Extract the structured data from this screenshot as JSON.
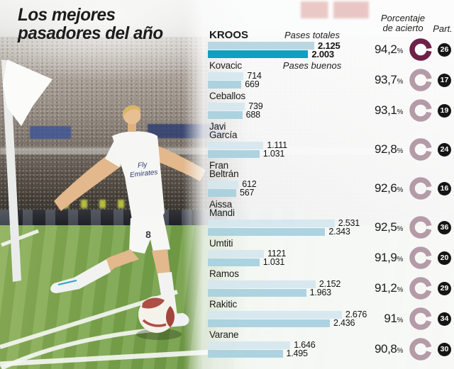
{
  "title": {
    "line1": "Los mejores",
    "line2": "pasadores del año"
  },
  "header": {
    "accuracy_line1": "Porcentaje",
    "accuracy_line2": "de acierto",
    "participation": "Part.",
    "percent_sign": "%"
  },
  "photo": {
    "jersey_line1": "Fly",
    "jersey_line2": "Emirates",
    "shirt_number": "8"
  },
  "colors": {
    "bar_total": "rgba(213,230,238,0.93)",
    "bar_good": "rgba(167,208,223,0.93)",
    "bar_total_highlight": "rgba(181,213,225,0.95)",
    "bar_good_highlight": "#0da0c0",
    "ring": "#b49ba7",
    "ring_highlight": "#6e2048",
    "badge_bg": "#151515",
    "badge_text": "#ffffff"
  },
  "chart_data": {
    "type": "bar",
    "title": "Los mejores pasadores del año",
    "orientation": "horizontal",
    "series_labels": {
      "total": "Pases totales",
      "good": "Pases buenos"
    },
    "columns": {
      "accuracy": "Porcentaje de acierto",
      "participation": "Part."
    },
    "players": [
      {
        "name_lines": [
          "KROOS"
        ],
        "total": 2125,
        "total_label": "2.125",
        "good": 2003,
        "good_label": "2.003",
        "accuracy": 94.2,
        "accuracy_label": "94,2",
        "matches": "26",
        "highlight": true
      },
      {
        "name_lines": [
          "Kovacic"
        ],
        "total": 714,
        "total_label": "714",
        "good": 669,
        "good_label": "669",
        "accuracy": 93.7,
        "accuracy_label": "93,7",
        "matches": "17",
        "highlight": false
      },
      {
        "name_lines": [
          "Ceballos"
        ],
        "total": 739,
        "total_label": "739",
        "good": 688,
        "good_label": "688",
        "accuracy": 93.1,
        "accuracy_label": "93,1",
        "matches": "19",
        "highlight": false
      },
      {
        "name_lines": [
          "Javi",
          "García"
        ],
        "total": 1111,
        "total_label": "1.111",
        "good": 1031,
        "good_label": "1.031",
        "accuracy": 92.8,
        "accuracy_label": "92,8",
        "matches": "24",
        "highlight": false
      },
      {
        "name_lines": [
          "Fran",
          "Beltrán"
        ],
        "total": 612,
        "total_label": "612",
        "good": 567,
        "good_label": "567",
        "accuracy": 92.6,
        "accuracy_label": "92,6",
        "matches": "16",
        "highlight": false
      },
      {
        "name_lines": [
          "Aissa",
          "Mandi"
        ],
        "total": 2531,
        "total_label": "2.531",
        "good": 2343,
        "good_label": "2.343",
        "accuracy": 92.5,
        "accuracy_label": "92,5",
        "matches": "36",
        "highlight": false
      },
      {
        "name_lines": [
          "Umtiti"
        ],
        "total": 1121,
        "total_label": "1121",
        "good": 1031,
        "good_label": "1.031",
        "accuracy": 91.9,
        "accuracy_label": "91,9",
        "matches": "20",
        "highlight": false
      },
      {
        "name_lines": [
          "Ramos"
        ],
        "total": 2152,
        "total_label": "2.152",
        "good": 1963,
        "good_label": "1.963",
        "accuracy": 91.2,
        "accuracy_label": "91,2",
        "matches": "29",
        "highlight": false
      },
      {
        "name_lines": [
          "Rakitic"
        ],
        "total": 2676,
        "total_label": "2.676",
        "good": 2436,
        "good_label": "2.436",
        "accuracy": 91.0,
        "accuracy_label": "91",
        "matches": "34",
        "highlight": false
      },
      {
        "name_lines": [
          "Varane"
        ],
        "total": 1646,
        "total_label": "1.646",
        "good": 1495,
        "good_label": "1.495",
        "accuracy": 90.8,
        "accuracy_label": "90,8",
        "matches": "30",
        "highlight": false
      }
    ]
  }
}
